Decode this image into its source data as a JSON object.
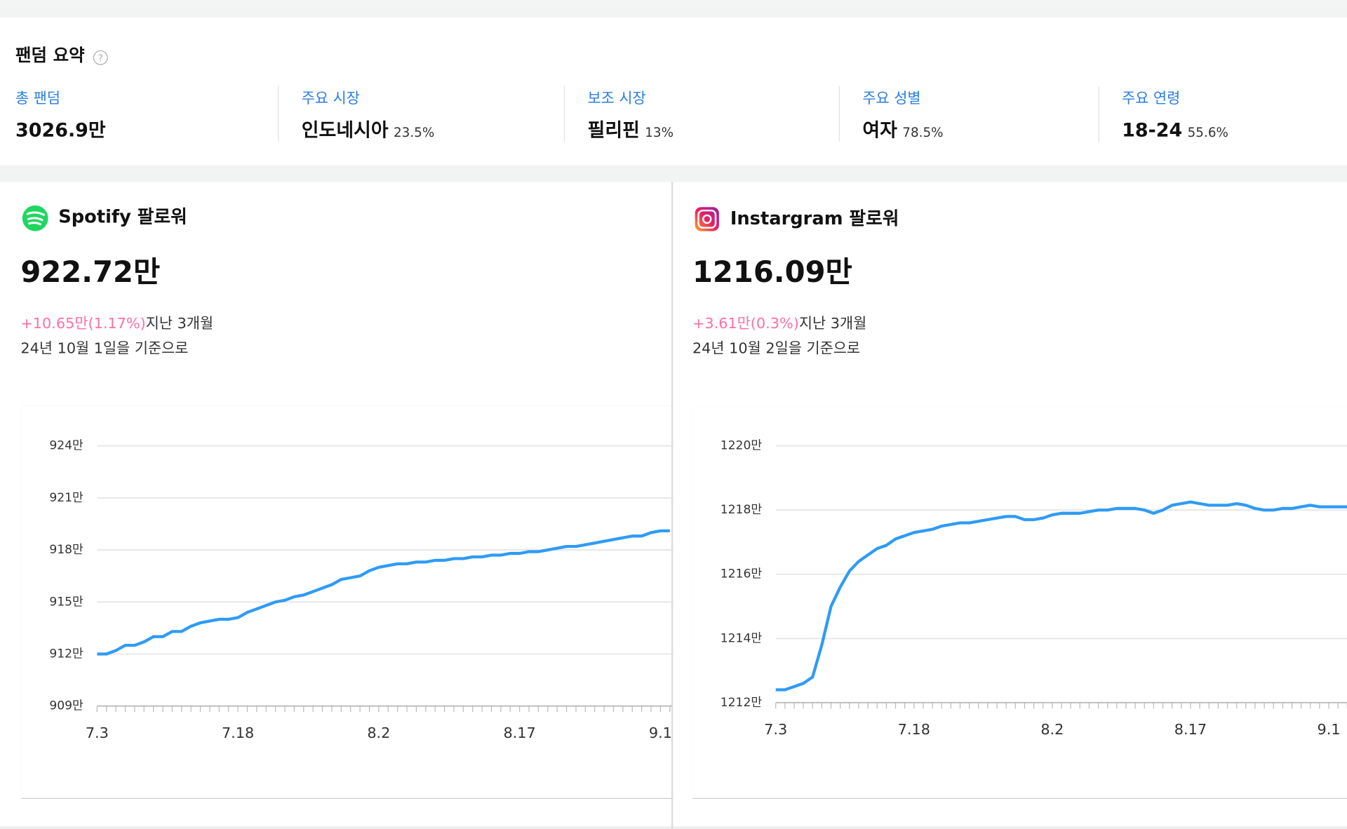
{
  "header": {
    "title": "팬덤 요약"
  },
  "summary": [
    {
      "label": "총 팬덤",
      "value": "3026.9만"
    },
    {
      "label": "주요 시장",
      "value": "인도네시아",
      "share": "23.5%"
    },
    {
      "label": "보조 시장",
      "value": "필리핀",
      "share": "13%"
    },
    {
      "label": "주요 성별",
      "value": "여자",
      "share": "78.5%"
    },
    {
      "label": "주요 연령",
      "value": "18-24",
      "share": "55.6%"
    }
  ],
  "panels": [
    {
      "title": "Spotify 팔로워",
      "total": "922.72만",
      "change": "+10.65만(1.17%)",
      "period": "지난 3개월",
      "basis": "24년 10월 1일을 기준으로"
    },
    {
      "title": "Instargram 팔로워",
      "total": "1216.09만",
      "change": "+3.61만(0.3%)",
      "period": "지난 3개월",
      "basis": "24년 10월 2일을 기준으로"
    }
  ],
  "chart_data": [
    {
      "type": "line",
      "color": "#2f9bf5",
      "categories": [
        "7.3",
        null,
        null,
        null,
        null,
        null,
        null,
        null,
        null,
        null,
        null,
        null,
        null,
        null,
        null,
        "7.18",
        null,
        null,
        null,
        null,
        null,
        null,
        null,
        null,
        null,
        null,
        null,
        null,
        null,
        null,
        "8.2",
        null,
        null,
        null,
        null,
        null,
        null,
        null,
        null,
        null,
        null,
        null,
        null,
        null,
        null,
        "8.17",
        null,
        null,
        null,
        null,
        null,
        null,
        null,
        null,
        null,
        null,
        null,
        null,
        null,
        null,
        "9.1",
        null
      ],
      "values": [
        912.0,
        912.0,
        912.2,
        912.5,
        912.5,
        912.7,
        913.0,
        913.0,
        913.3,
        913.3,
        913.6,
        913.8,
        913.9,
        914.0,
        914.0,
        914.1,
        914.4,
        914.6,
        914.8,
        915.0,
        915.1,
        915.3,
        915.4,
        915.6,
        915.8,
        916.0,
        916.3,
        916.4,
        916.5,
        916.8,
        917.0,
        917.1,
        917.2,
        917.2,
        917.3,
        917.3,
        917.4,
        917.4,
        917.5,
        917.5,
        917.6,
        917.6,
        917.7,
        917.7,
        917.8,
        917.8,
        917.9,
        917.9,
        918.0,
        918.1,
        918.2,
        918.2,
        918.3,
        918.4,
        918.5,
        918.6,
        918.7,
        918.8,
        918.8,
        919.0,
        919.1,
        919.1
      ],
      "ylim": [
        909,
        924
      ],
      "yticks": [
        {
          "value": 909,
          "label": "909만"
        },
        {
          "value": 912,
          "label": "912만"
        },
        {
          "value": 915,
          "label": "915만"
        },
        {
          "value": 918,
          "label": "918만"
        },
        {
          "value": 921,
          "label": "921만"
        },
        {
          "value": 924,
          "label": "924만"
        }
      ],
      "grid": true
    },
    {
      "type": "line",
      "color": "#2f9bf5",
      "categories": [
        "7.3",
        null,
        null,
        null,
        null,
        null,
        null,
        null,
        null,
        null,
        null,
        null,
        null,
        null,
        null,
        "7.18",
        null,
        null,
        null,
        null,
        null,
        null,
        null,
        null,
        null,
        null,
        null,
        null,
        null,
        null,
        "8.2",
        null,
        null,
        null,
        null,
        null,
        null,
        null,
        null,
        null,
        null,
        null,
        null,
        null,
        null,
        "8.17",
        null,
        null,
        null,
        null,
        null,
        null,
        null,
        null,
        null,
        null,
        null,
        null,
        null,
        null,
        "9.1",
        null,
        null
      ],
      "values": [
        1212.4,
        1212.4,
        1212.5,
        1212.6,
        1212.8,
        1213.8,
        1215.0,
        1215.6,
        1216.1,
        1216.4,
        1216.6,
        1216.8,
        1216.9,
        1217.1,
        1217.2,
        1217.3,
        1217.35,
        1217.4,
        1217.5,
        1217.55,
        1217.6,
        1217.6,
        1217.65,
        1217.7,
        1217.75,
        1217.8,
        1217.8,
        1217.7,
        1217.7,
        1217.75,
        1217.85,
        1217.9,
        1217.9,
        1217.9,
        1217.95,
        1218.0,
        1218.0,
        1218.05,
        1218.05,
        1218.05,
        1218.0,
        1217.9,
        1218.0,
        1218.15,
        1218.2,
        1218.25,
        1218.2,
        1218.15,
        1218.15,
        1218.15,
        1218.2,
        1218.15,
        1218.05,
        1218.0,
        1218.0,
        1218.05,
        1218.05,
        1218.1,
        1218.15,
        1218.1,
        1218.1,
        1218.1,
        1218.1
      ],
      "ylim": [
        1212,
        1220
      ],
      "yticks": [
        {
          "value": 1212,
          "label": "1212만"
        },
        {
          "value": 1214,
          "label": "1214만"
        },
        {
          "value": 1216,
          "label": "1216만"
        },
        {
          "value": 1218,
          "label": "1218만"
        },
        {
          "value": 1220,
          "label": "1220만"
        }
      ],
      "grid": true
    }
  ]
}
